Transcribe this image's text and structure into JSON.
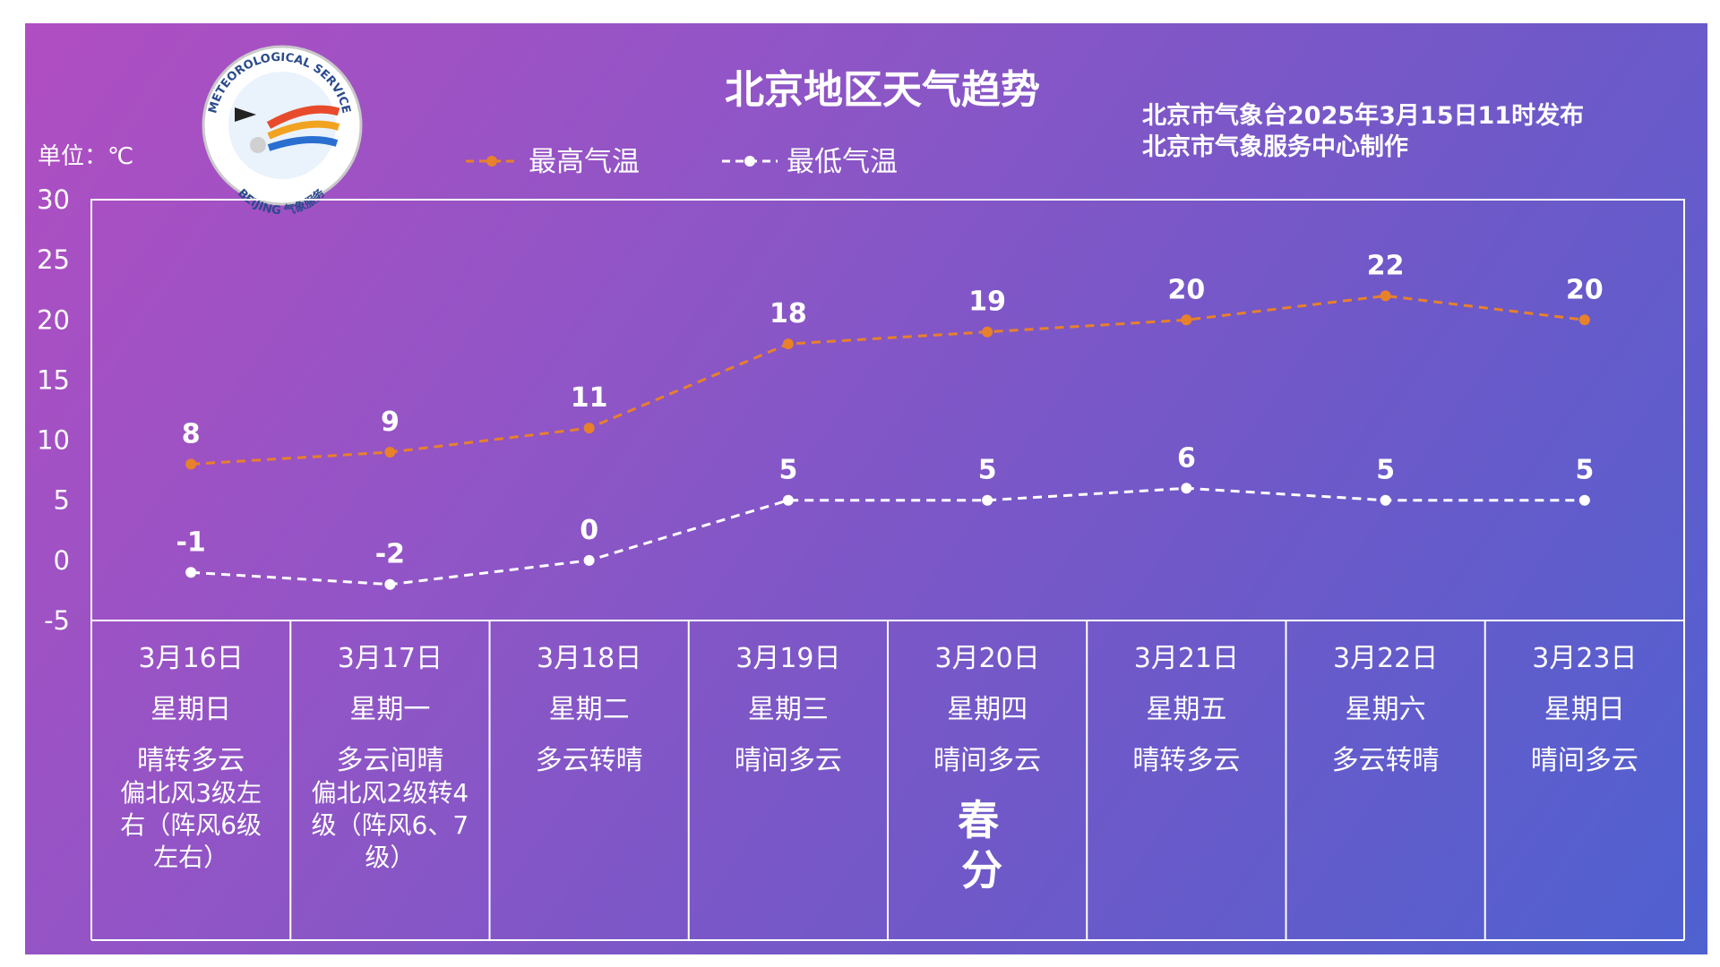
{
  "header": {
    "title": "北京地区天气趋势",
    "publisher_line1": "北京市气象台2025年3月15日11时发布",
    "publisher_line2": "北京市气象服务中心制作",
    "unit": "单位：℃",
    "logo_text_top": "METEOROLOGICAL SERVICE",
    "logo_text_bottom": "BEIJING 气象服务"
  },
  "colors": {
    "high": "#e8812b",
    "low": "#ffffff"
  },
  "chart_data": {
    "type": "line",
    "y_unit": "℃",
    "ylim": [
      -5,
      30
    ],
    "yticks": [
      30,
      25,
      20,
      15,
      10,
      5,
      0,
      -5
    ],
    "legend": "top-center",
    "series": [
      {
        "name": "最高气温",
        "values": [
          8,
          9,
          11,
          18,
          19,
          20,
          22,
          20
        ]
      },
      {
        "name": "最低气温",
        "values": [
          -1,
          -2,
          0,
          5,
          5,
          6,
          5,
          5
        ]
      }
    ],
    "days": [
      {
        "date": "3月16日",
        "weekday": "星期日",
        "weather": "晴转多云",
        "wind": [
          "偏北风3级左",
          "右（阵风6级",
          "左右）"
        ]
      },
      {
        "date": "3月17日",
        "weekday": "星期一",
        "weather": "多云间晴",
        "wind": [
          "偏北风2级转4",
          "级（阵风6、7",
          "级）"
        ]
      },
      {
        "date": "3月18日",
        "weekday": "星期二",
        "weather": "多云转晴",
        "wind": []
      },
      {
        "date": "3月19日",
        "weekday": "星期三",
        "weather": "晴间多云",
        "wind": []
      },
      {
        "date": "3月20日",
        "weekday": "星期四",
        "weather": "晴间多云",
        "wind": [],
        "solar_term": [
          "春",
          "分"
        ]
      },
      {
        "date": "3月21日",
        "weekday": "星期五",
        "weather": "晴转多云",
        "wind": []
      },
      {
        "date": "3月22日",
        "weekday": "星期六",
        "weather": "多云转晴",
        "wind": []
      },
      {
        "date": "3月23日",
        "weekday": "星期日",
        "weather": "晴间多云",
        "wind": []
      }
    ]
  }
}
